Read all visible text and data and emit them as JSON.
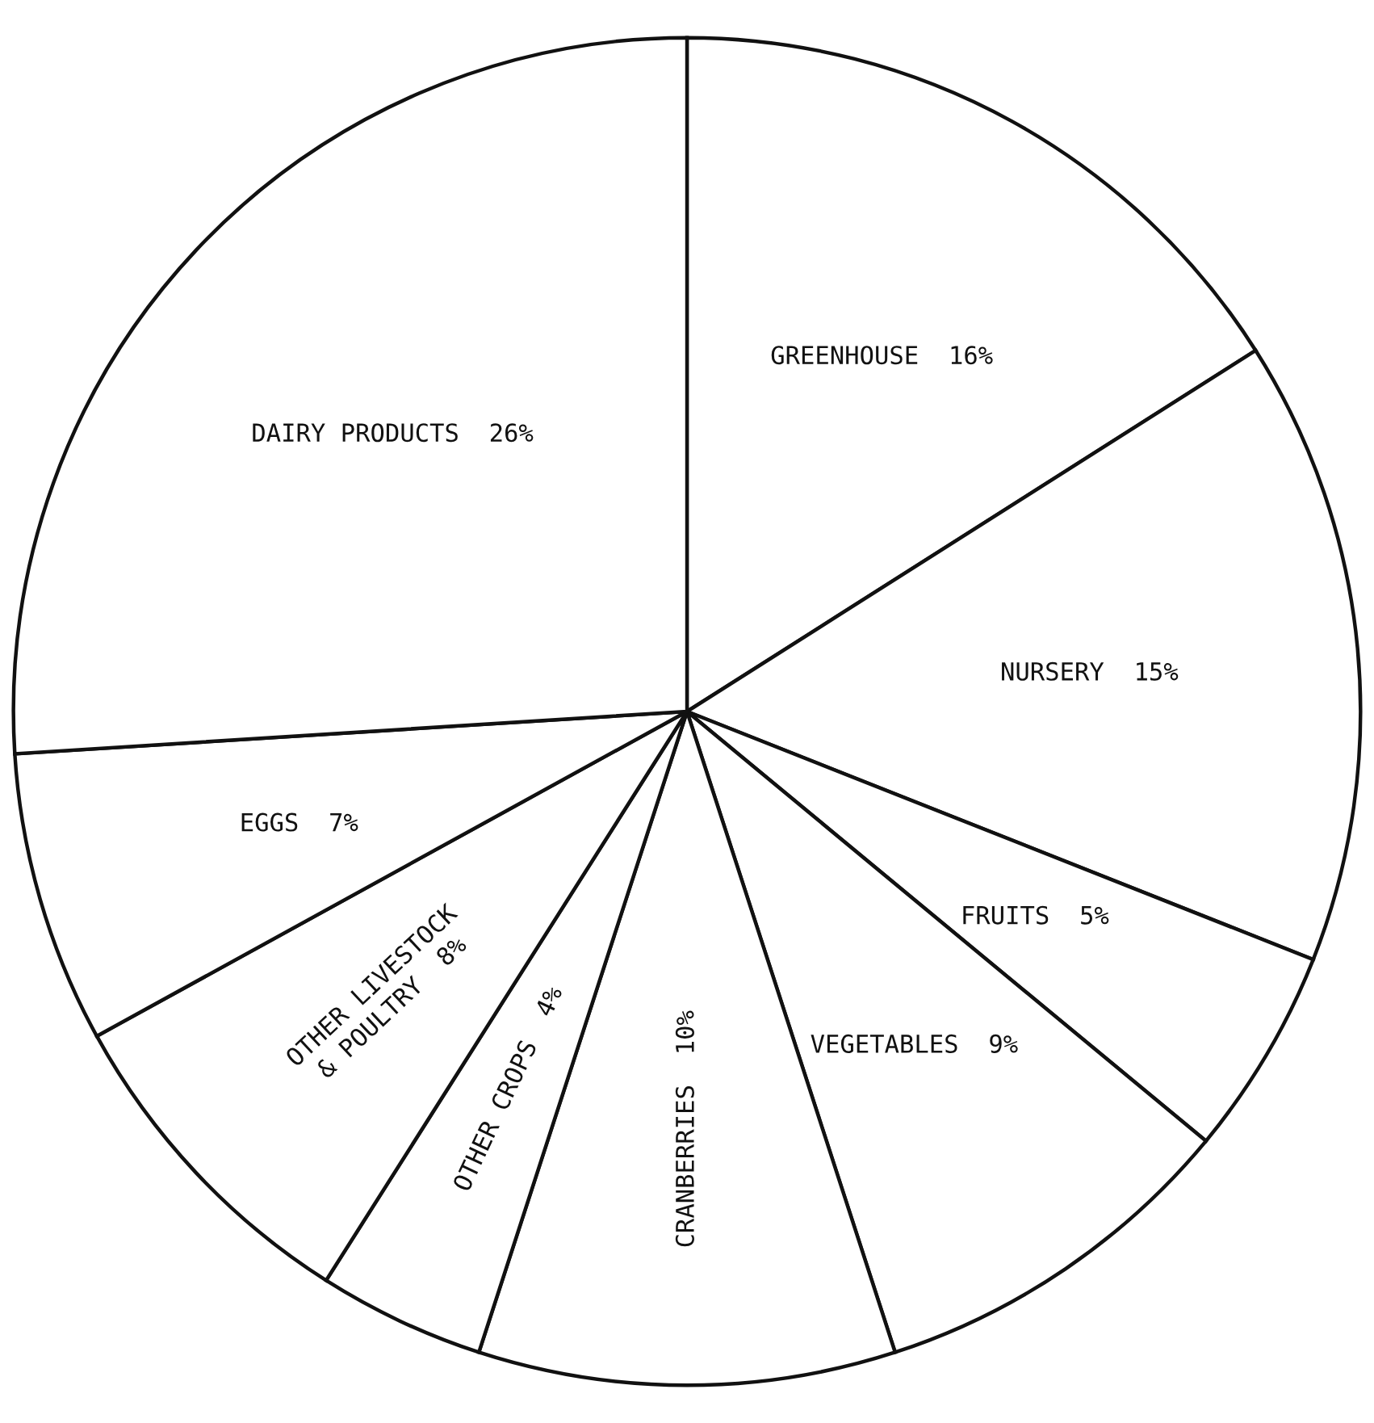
{
  "chart_data": {
    "type": "pie",
    "categories": [
      "GREENHOUSE",
      "NURSERY",
      "FRUITS",
      "VEGETABLES",
      "CRANBERRIES",
      "OTHER CROPS",
      "OTHER LIVESTOCK\n& POULTRY",
      "EGGS",
      "DAIRY PRODUCTS"
    ],
    "values": [
      16,
      15,
      5,
      9,
      10,
      4,
      8,
      7,
      26
    ],
    "value_labels": [
      "16%",
      "15%",
      "5%",
      "9%",
      "10%",
      "4%",
      "8%",
      "7%",
      "26%"
    ],
    "colors": [
      "#ffffff",
      "#ffffff",
      "#ffffff",
      "#ffffff",
      "#ffffff",
      "#ffffff",
      "#ffffff",
      "#ffffff",
      "#ffffff"
    ]
  }
}
